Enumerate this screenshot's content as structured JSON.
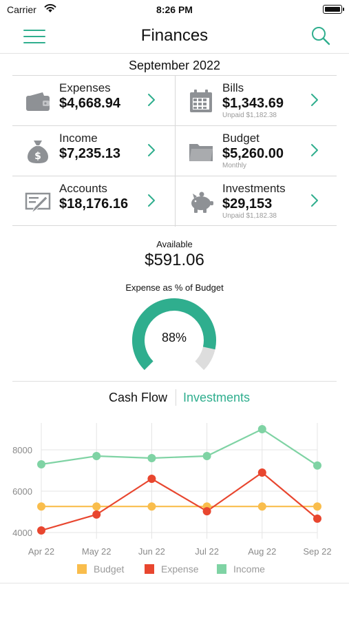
{
  "status_bar": {
    "carrier": "Carrier",
    "time": "8:26 PM"
  },
  "nav": {
    "title": "Finances"
  },
  "month": "September 2022",
  "tiles": [
    {
      "label": "Expenses",
      "value": "$4,668.94",
      "sub": "",
      "icon": "wallet-icon"
    },
    {
      "label": "Bills",
      "value": "$1,343.69",
      "sub": "Unpaid $1,182.38",
      "icon": "calendar-icon"
    },
    {
      "label": "Income",
      "value": "$7,235.13",
      "sub": "",
      "icon": "money-bag-icon"
    },
    {
      "label": "Budget",
      "value": "$5,260.00",
      "sub": "Monthly",
      "icon": "folder-icon"
    },
    {
      "label": "Accounts",
      "value": "$18,176.16",
      "sub": "",
      "icon": "check-icon"
    },
    {
      "label": "Investments",
      "value": "$29,153",
      "sub": "Unpaid $1,182.38",
      "icon": "piggy-bank-icon"
    }
  ],
  "available": {
    "label": "Available",
    "value": "$591.06"
  },
  "gauge": {
    "label": "Expense as % of Budget",
    "text": "88%",
    "fraction": 0.88
  },
  "tabs": {
    "cash_flow": "Cash Flow",
    "investments": "Investments",
    "active": "investments"
  },
  "colors": {
    "accent": "#2fae8e",
    "budget": "#f9bd4c",
    "expense": "#e8462f",
    "income": "#7fd3a4",
    "icon_gray": "#8e9195",
    "gauge_rest": "#dddddd"
  },
  "chart_data": {
    "type": "line",
    "categories": [
      "Apr 22",
      "May 22",
      "Jun 22",
      "Jul 22",
      "Aug 22",
      "Sep 22"
    ],
    "y_ticks": [
      "4000",
      "6000",
      "8000"
    ],
    "ylim": [
      3700,
      9300
    ],
    "grid": true,
    "legend_placement": "bottom",
    "series": [
      {
        "name": "Budget",
        "color": "#f9bd4c",
        "values": [
          5260,
          5260,
          5260,
          5260,
          5260,
          5260
        ]
      },
      {
        "name": "Expense",
        "color": "#e8462f",
        "values": [
          4100,
          4870,
          6600,
          5030,
          6900,
          4670
        ]
      },
      {
        "name": "Income",
        "color": "#7fd3a4",
        "values": [
          7300,
          7700,
          7600,
          7700,
          9000,
          7240
        ]
      }
    ]
  }
}
